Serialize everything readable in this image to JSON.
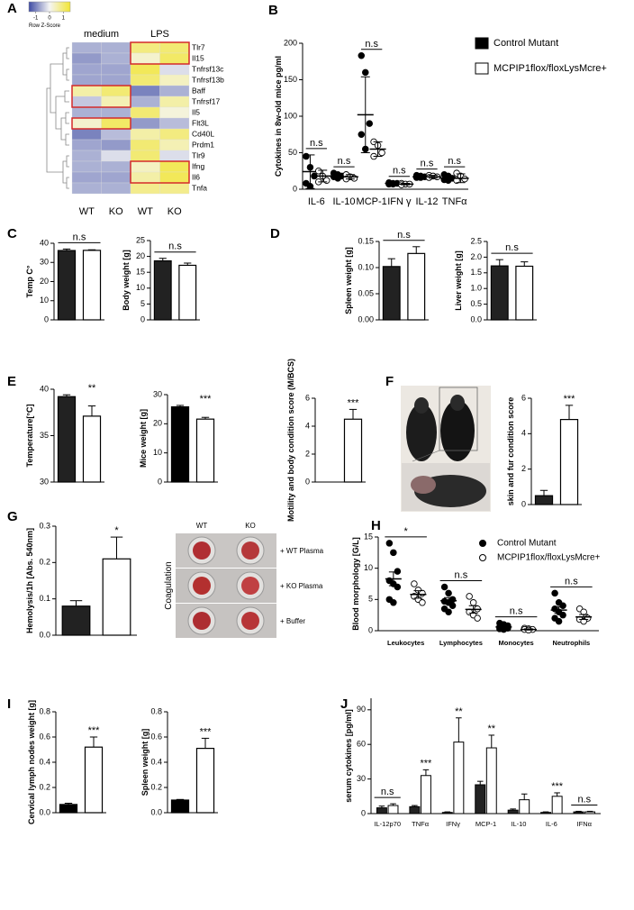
{
  "chart_data": [
    {
      "type": "heatmap",
      "panel": "A",
      "rows": [
        "Tlr7",
        "Il15",
        "Tnfrsf13c",
        "Tnfrsf13b",
        "Baff",
        "Tnfrsf17",
        "Il5",
        "Flt3L",
        "Cd40L",
        "Prdm1",
        "Tlr9",
        "Ifng",
        "Il6",
        "Tnfa"
      ],
      "columns": [
        "WT",
        "KO",
        "WT",
        "KO"
      ],
      "groups": [
        "medium",
        "LPS"
      ],
      "values": [
        [
          -0.6,
          -0.6,
          0.9,
          1.0
        ],
        [
          -0.8,
          -0.6,
          0.3,
          1.1
        ],
        [
          -0.7,
          -0.7,
          1.2,
          -0.2
        ],
        [
          -0.7,
          -0.7,
          1.0,
          0.4
        ],
        [
          0.6,
          1.0,
          -1.0,
          -0.6
        ],
        [
          -0.4,
          0.5,
          -0.6,
          0.6
        ],
        [
          -0.6,
          -0.6,
          1.0,
          0.2
        ],
        [
          0.3,
          1.1,
          -0.8,
          -0.5
        ],
        [
          -1.0,
          -0.5,
          0.6,
          0.9
        ],
        [
          -0.7,
          -0.8,
          1.0,
          0.5
        ],
        [
          -0.6,
          -0.2,
          1.0,
          -0.2
        ],
        [
          -0.6,
          -0.6,
          0.4,
          1.2
        ],
        [
          -0.7,
          -0.7,
          0.6,
          1.2
        ],
        [
          -0.6,
          -0.6,
          0.8,
          0.8
        ]
      ],
      "zlim": [
        -1.5,
        1.5
      ],
      "colorscale": {
        "title": "Row Z-Score",
        "ticks": [
          -1,
          0,
          1
        ],
        "colors": [
          "#3d4aa3",
          "#f5f5f5",
          "#f1e532"
        ]
      }
    },
    {
      "type": "dot",
      "panel": "B",
      "ylabel": "Cytokines in 8w-old mice pg/ml",
      "categories": [
        "IL-6",
        "IL-10",
        "MCP-1",
        "IFN γ",
        "IL-12",
        "TNFα"
      ],
      "ylim": [
        0,
        200
      ],
      "yticks": [
        0,
        50,
        100,
        150,
        200
      ],
      "series": [
        {
          "name": "Control Mutant",
          "color": "#000000",
          "values": [
            24,
            18,
            102,
            8,
            17,
            15
          ],
          "errors": [
            23,
            3,
            52,
            1,
            2,
            3
          ],
          "points": [
            [
              45,
              30,
              18,
              8,
              4
            ],
            [
              22,
              20,
              18,
              17,
              15
            ],
            [
              183,
              160,
              90,
              75,
              55
            ],
            [
              9,
              8,
              8,
              7,
              7
            ],
            [
              19,
              18,
              17,
              16,
              16
            ],
            [
              20,
              18,
              15,
              13,
              12
            ]
          ]
        },
        {
          "name": "MCPIP1flox/floxLysMcre+",
          "color": "#ffffff",
          "values": [
            18,
            17,
            55,
            7,
            17,
            15
          ],
          "errors": [
            8,
            3,
            10,
            1,
            2,
            6
          ],
          "points": [
            [
              25,
              18,
              12,
              10
            ],
            [
              20,
              17,
              15,
              14
            ],
            [
              65,
              60,
              50,
              45
            ],
            [
              8,
              7,
              7,
              6
            ],
            [
              19,
              18,
              17,
              16
            ],
            [
              22,
              18,
              14,
              12
            ]
          ]
        }
      ],
      "annotations": [
        "n.s",
        "n.s",
        "n.s",
        "n.s",
        "n.s",
        "n.s"
      ],
      "bracket": true,
      "legend": "right",
      "legend_marker": "square"
    },
    {
      "type": "bar",
      "panel": "C",
      "ylabel": "Temp C°",
      "ylim": [
        0,
        40
      ],
      "yticks": [
        0,
        10,
        20,
        30,
        40
      ],
      "values": [
        36.2,
        36.3
      ],
      "errors": [
        0.8,
        0.3
      ],
      "colors": [
        "#222222",
        "#ffffff"
      ],
      "annotation": "n.s",
      "bracket": true
    },
    {
      "type": "bar",
      "ylabel": "Body weight [g]",
      "ylim": [
        0,
        25
      ],
      "yticks": [
        0,
        5,
        10,
        15,
        20,
        25
      ],
      "values": [
        18.6,
        17.2
      ],
      "errors": [
        0.8,
        0.7
      ],
      "colors": [
        "#222222",
        "#ffffff"
      ],
      "annotation": "n.s",
      "bracket": true
    },
    {
      "type": "bar",
      "panel": "D",
      "ylabel": "Spleen weight [g]",
      "ylim": [
        0,
        0.15
      ],
      "yticks": [
        {
          "value": 0,
          "label": "0.00"
        },
        0.05,
        {
          "value": 0.1,
          "label": "0.10"
        },
        0.15
      ],
      "values": [
        0.102,
        0.127
      ],
      "errors": [
        0.015,
        0.013
      ],
      "colors": [
        "#222222",
        "#ffffff"
      ],
      "annotation": "n.s",
      "bracket": true
    },
    {
      "type": "bar",
      "ylabel": "Liver weight [g]",
      "ylim": [
        0,
        2.5
      ],
      "yticks": [
        {
          "value": 0,
          "label": "0.0"
        },
        0.5,
        {
          "value": 1,
          "label": "1.0"
        },
        1.5,
        {
          "value": 2,
          "label": "2.0"
        },
        2.5
      ],
      "values": [
        1.72,
        1.71
      ],
      "errors": [
        0.2,
        0.14
      ],
      "colors": [
        "#222222",
        "#ffffff"
      ],
      "annotation": "n.s",
      "bracket": true
    },
    {
      "type": "bar",
      "panel": "E",
      "ylabel": "Temperature[°C]",
      "ylim": [
        30,
        40
      ],
      "yticks": [
        30,
        35,
        40
      ],
      "values": [
        39.2,
        37.1
      ],
      "errors": [
        0.2,
        1.1
      ],
      "colors": [
        "#222222",
        "#ffffff"
      ],
      "annotation": "**",
      "bracket": false
    },
    {
      "type": "bar",
      "ylabel": "Mice weight [g]",
      "ylim": [
        0,
        30
      ],
      "yticks": [
        0,
        10,
        20,
        30
      ],
      "values": [
        25.8,
        21.6
      ],
      "errors": [
        0.5,
        0.6
      ],
      "colors": [
        "#000000",
        "#ffffff"
      ],
      "annotation": "***",
      "bracket": false
    },
    {
      "type": "bar",
      "ylabel": "Motility and body condition score (M/BCS)",
      "ylim": [
        0,
        6
      ],
      "yticks": [
        0,
        2,
        4,
        6
      ],
      "values": [
        0,
        4.5
      ],
      "errors": [
        null,
        0.7
      ],
      "colors": [
        "#222222",
        "#ffffff"
      ],
      "annotation": "***",
      "bracket": false
    },
    {
      "type": "bar",
      "panel": "F",
      "ylabel": "skin and fur condition score",
      "ylim": [
        0,
        6
      ],
      "yticks": [
        0,
        2,
        4,
        6
      ],
      "values": [
        0.5,
        4.8
      ],
      "errors": [
        0.3,
        0.8
      ],
      "colors": [
        "#222222",
        "#ffffff"
      ],
      "annotation": "***",
      "bracket": false
    },
    {
      "type": "bar",
      "panel": "G",
      "ylabel": "Hemolysis/1h [Abs. 540nm]",
      "ylim": [
        0,
        0.3
      ],
      "yticks": [
        {
          "value": 0,
          "label": "0.0"
        },
        0.1,
        0.2,
        0.3
      ],
      "values": [
        0.08,
        0.21
      ],
      "errors": [
        0.015,
        0.06
      ],
      "colors": [
        "#222222",
        "#ffffff"
      ],
      "annotation": "*",
      "bracket": false,
      "photo": {
        "title": "Coagulation",
        "columns": [
          "WT",
          "KO"
        ],
        "rows": [
          "+ WT Plasma",
          "+ KO Plasma",
          "+ Buffer"
        ]
      }
    },
    {
      "type": "dot",
      "panel": "H",
      "ylabel": "Blood morphology [G/L]",
      "categories": [
        "Leukocytes",
        "Lymphocytes",
        "Monocytes",
        "Neutrophils"
      ],
      "ylim": [
        0,
        15
      ],
      "yticks": [
        0,
        5,
        10,
        15
      ],
      "series": [
        {
          "name": "Control Mutant",
          "color": "#000000",
          "values": [
            8.3,
            4.8,
            0.6,
            3.3
          ],
          "errors": [
            1.1,
            0.5,
            0.15,
            0.5
          ],
          "points": [
            [
              14,
              12.5,
              9.5,
              8,
              7.5,
              7,
              5,
              4.5
            ],
            [
              7,
              6,
              5,
              4.7,
              4.5,
              4,
              3.5,
              3
            ],
            [
              1.2,
              1,
              0.8,
              0.6,
              0.5,
              0.4,
              0.3,
              0.2
            ],
            [
              6,
              4.5,
              4,
              3.5,
              3,
              2.5,
              2,
              1.5
            ]
          ]
        },
        {
          "name": "MCPIP1flox/floxLysMcre+",
          "color": "#ffffff",
          "values": [
            5.8,
            3.4,
            0.2,
            2.2
          ],
          "errors": [
            0.6,
            0.6,
            0.1,
            0.4
          ],
          "points": [
            [
              7.5,
              6.5,
              6,
              5.5,
              5,
              4.5
            ],
            [
              5.5,
              4.5,
              3.5,
              3,
              2.5,
              2
            ],
            [
              0.4,
              0.3,
              0.2,
              0.2,
              0.1
            ],
            [
              3.5,
              3,
              2,
              1.8,
              1.5
            ]
          ]
        }
      ],
      "annotations": [
        "*",
        "n.s",
        "n.s",
        "n.s"
      ],
      "bracket": true,
      "legend": "upper right",
      "legend_marker": "circle"
    },
    {
      "type": "bar",
      "panel": "I",
      "ylabel": "Cervical lymph nodes weight [g]",
      "ylim": [
        0,
        0.8
      ],
      "yticks": [
        {
          "value": 0,
          "label": "0.0"
        },
        0.2,
        0.4,
        0.6,
        0.8
      ],
      "values": [
        0.065,
        0.52
      ],
      "errors": [
        0.01,
        0.08
      ],
      "colors": [
        "#000000",
        "#ffffff"
      ],
      "annotation": "***",
      "bracket": false
    },
    {
      "type": "bar",
      "ylabel": "Spleen weight [g]",
      "ylim": [
        0,
        0.8
      ],
      "yticks": [
        {
          "value": 0,
          "label": "0.0"
        },
        0.2,
        0.4,
        0.6,
        0.8
      ],
      "values": [
        0.1,
        0.51
      ],
      "errors": [
        0.005,
        0.08
      ],
      "colors": [
        "#000000",
        "#ffffff"
      ],
      "annotation": "***",
      "bracket": false
    },
    {
      "type": "grouped_bar",
      "panel": "J",
      "ylabel": "serum cytokines [pg/ml]",
      "categories": [
        "IL-12p70",
        "TNFα",
        "IFNγ",
        "MCP-1",
        "IL-10",
        "IL-6",
        "IFNα"
      ],
      "ylim": [
        0,
        100
      ],
      "yticks": [
        0,
        30,
        60,
        90
      ],
      "series": [
        {
          "name": "Control Mutant",
          "color": "#222222",
          "values": [
            5,
            6,
            1,
            25,
            3,
            1,
            1.5
          ],
          "errors": [
            1.5,
            1,
            0.5,
            3,
            1,
            0.5,
            0.5
          ]
        },
        {
          "name": "MCPIP1flox/floxLysMcre+",
          "color": "#ffffff",
          "values": [
            7,
            33,
            62,
            57,
            12,
            15,
            1.5
          ],
          "errors": [
            1.5,
            5,
            21,
            11,
            5,
            3,
            0.5
          ]
        }
      ],
      "annotations": [
        "n.s",
        "***",
        "**",
        "**",
        null,
        "***",
        "n.s"
      ],
      "bracket": [
        true,
        false,
        false,
        false,
        false,
        false,
        true
      ]
    }
  ]
}
